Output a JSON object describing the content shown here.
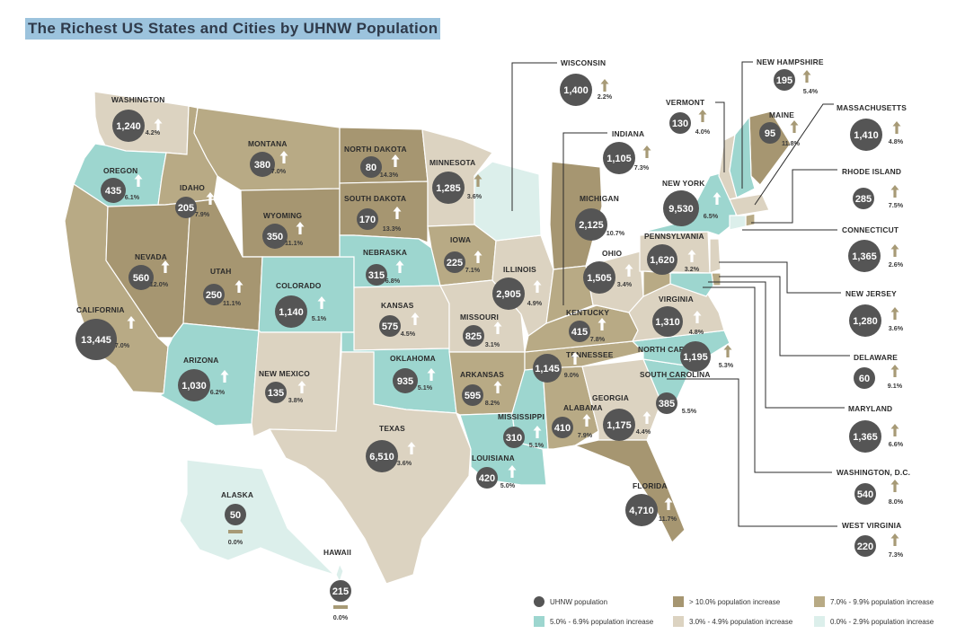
{
  "title": "The Richest US States and Cities by UHNW Population",
  "colors": {
    "gt10": "#a69671",
    "r7to9": "#b8aa85",
    "r5to6": "#9dd6cf",
    "r3to4": "#dcd3c1",
    "r0to2": "#dcefeb",
    "bubble": "#555555",
    "arrow_light": "#ffffff",
    "arrow_dark": "#a79a76"
  },
  "states": [
    {
      "name": "WASHINGTON",
      "value": "1,240",
      "pct": "4.2%"
    },
    {
      "name": "OREGON",
      "value": "435",
      "pct": "6.1%"
    },
    {
      "name": "CALIFORNIA",
      "value": "13,445",
      "pct": "7.0%"
    },
    {
      "name": "IDAHO",
      "value": "205",
      "pct": "7.9%"
    },
    {
      "name": "NEVADA",
      "value": "560",
      "pct": "12.0%"
    },
    {
      "name": "MONTANA",
      "value": "380",
      "pct": "7.0%"
    },
    {
      "name": "WYOMING",
      "value": "350",
      "pct": "11.1%"
    },
    {
      "name": "UTAH",
      "value": "250",
      "pct": "11.1%"
    },
    {
      "name": "ARIZONA",
      "value": "1,030",
      "pct": "6.2%"
    },
    {
      "name": "COLORADO",
      "value": "1,140",
      "pct": "5.1%"
    },
    {
      "name": "NEW MEXICO",
      "value": "135",
      "pct": "3.8%"
    },
    {
      "name": "NORTH DAKOTA",
      "value": "80",
      "pct": "14.3%"
    },
    {
      "name": "SOUTH DAKOTA",
      "value": "170",
      "pct": "13.3%"
    },
    {
      "name": "NEBRASKA",
      "value": "315",
      "pct": "6.8%"
    },
    {
      "name": "KANSAS",
      "value": "575",
      "pct": "4.5%"
    },
    {
      "name": "OKLAHOMA",
      "value": "935",
      "pct": "5.1%"
    },
    {
      "name": "TEXAS",
      "value": "6,510",
      "pct": "3.6%"
    },
    {
      "name": "MINNESOTA",
      "value": "1,285",
      "pct": "3.6%"
    },
    {
      "name": "IOWA",
      "value": "225",
      "pct": "7.1%"
    },
    {
      "name": "MISSOURI",
      "value": "825",
      "pct": "3.1%"
    },
    {
      "name": "ARKANSAS",
      "value": "595",
      "pct": "8.2%"
    },
    {
      "name": "LOUISIANA",
      "value": "420",
      "pct": "5.0%"
    },
    {
      "name": "ILLINOIS",
      "value": "2,905",
      "pct": "4.9%"
    },
    {
      "name": "MISSISSIPPI",
      "value": "310",
      "pct": "5.1%"
    },
    {
      "name": "ALABAMA",
      "value": "410",
      "pct": "7.9%"
    },
    {
      "name": "TENNESSEE",
      "value": "1,145",
      "pct": "9.0%"
    },
    {
      "name": "KENTUCKY",
      "value": "415",
      "pct": "7.8%"
    },
    {
      "name": "MICHIGAN",
      "value": "2,125",
      "pct": "10.7%"
    },
    {
      "name": "OHIO",
      "value": "1,505",
      "pct": "3.4%"
    },
    {
      "name": "GEORGIA",
      "value": "1,175",
      "pct": "4.4%"
    },
    {
      "name": "FLORIDA",
      "value": "4,710",
      "pct": "11.7%"
    },
    {
      "name": "SOUTH CAROLINA",
      "value": "385",
      "pct": "5.5%"
    },
    {
      "name": "NORTH CAROLINA",
      "value": "1,195",
      "pct": "5.3%"
    },
    {
      "name": "VIRGINIA",
      "value": "1,310",
      "pct": "4.8%"
    },
    {
      "name": "PENNSYLVANIA",
      "value": "1,620",
      "pct": "3.2%"
    },
    {
      "name": "NEW YORK",
      "value": "9,530",
      "pct": "6.5%"
    },
    {
      "name": "MAINE",
      "value": "95",
      "pct": "11.8%"
    },
    {
      "name": "ALASKA",
      "value": "50",
      "pct": "0.0%"
    },
    {
      "name": "HAWAII",
      "value": "215",
      "pct": "0.0%"
    }
  ],
  "callouts": [
    {
      "name": "WISCONSIN",
      "value": "1,400",
      "pct": "2.2%"
    },
    {
      "name": "INDIANA",
      "value": "1,105",
      "pct": "7.3%"
    },
    {
      "name": "VERMONT",
      "value": "130",
      "pct": "4.0%"
    },
    {
      "name": "NEW HAMPSHIRE",
      "value": "195",
      "pct": "5.4%"
    },
    {
      "name": "MASSACHUSETTS",
      "value": "1,410",
      "pct": "4.8%"
    },
    {
      "name": "RHODE ISLAND",
      "value": "285",
      "pct": "7.5%"
    },
    {
      "name": "CONNECTICUT",
      "value": "1,365",
      "pct": "2.6%"
    },
    {
      "name": "NEW JERSEY",
      "value": "1,280",
      "pct": "3.6%"
    },
    {
      "name": "DELAWARE",
      "value": "60",
      "pct": "9.1%"
    },
    {
      "name": "MARYLAND",
      "value": "1,365",
      "pct": "6.6%"
    },
    {
      "name": "WASHINGTON, D.C.",
      "value": "540",
      "pct": "8.0%"
    },
    {
      "name": "WEST VIRGINIA",
      "value": "220",
      "pct": "7.3%"
    }
  ],
  "legend": [
    {
      "label": "UHNW population",
      "color": "#555555",
      "shape": "circle"
    },
    {
      "label": "> 10.0% population increase",
      "color": "#a69671",
      "shape": "square"
    },
    {
      "label": "7.0% - 9.9% population increase",
      "color": "#b8aa85",
      "shape": "square"
    },
    {
      "label": "5.0% - 6.9% population increase",
      "color": "#9dd6cf",
      "shape": "square"
    },
    {
      "label": "3.0% - 4.9% population increase",
      "color": "#dcd3c1",
      "shape": "square"
    },
    {
      "label": "0.0% - 2.9% population increase",
      "color": "#dcefeb",
      "shape": "square"
    }
  ]
}
